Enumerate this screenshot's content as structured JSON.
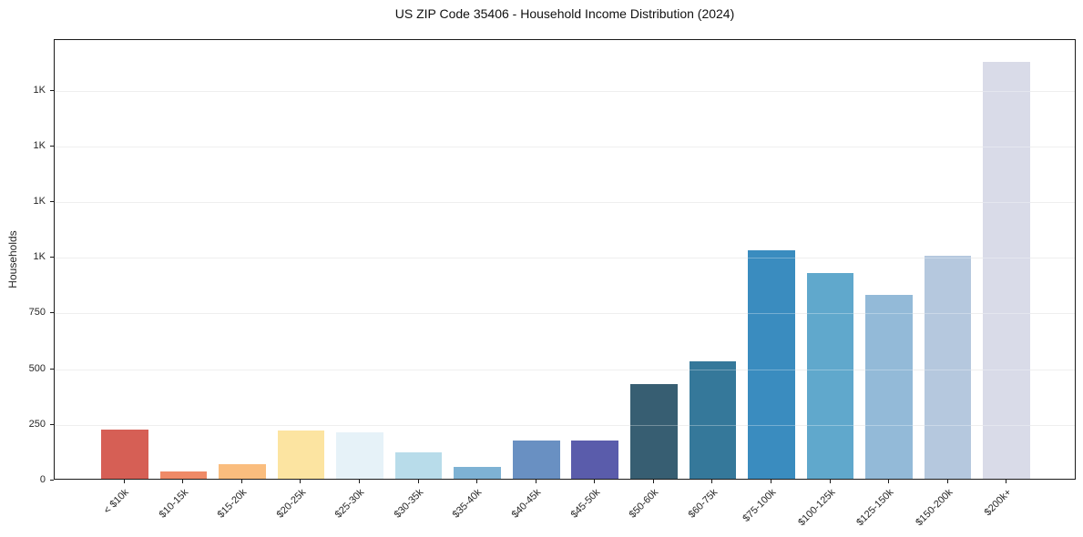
{
  "chart_data": {
    "type": "bar",
    "title": "US ZIP Code 35406 - Household Income Distribution (2024)",
    "xlabel": "",
    "ylabel": "Households",
    "categories": [
      "< $10k",
      "$10-15k",
      "$15-20k",
      "$20-25k",
      "$25-30k",
      "$30-35k",
      "$35-40k",
      "$40-45k",
      "$45-50k",
      "$50-60k",
      "$60-75k",
      "$75-100k",
      "$100-125k",
      "$125-150k",
      "$150-200k",
      "$200k+"
    ],
    "values": [
      220,
      32,
      65,
      215,
      210,
      120,
      55,
      170,
      170,
      425,
      525,
      1025,
      925,
      825,
      1000,
      1870
    ],
    "bar_colors": [
      "#d65f55",
      "#ef8a67",
      "#fabd7e",
      "#fce4a1",
      "#e6f2f8",
      "#b8dcea",
      "#7eb2d4",
      "#6990c2",
      "#5a5cab",
      "#375e72",
      "#35789a",
      "#3a8cbf",
      "#60a8cc",
      "#93bad8",
      "#b5c8de",
      "#d9dbe8"
    ],
    "ylim": [
      0,
      1977
    ],
    "yticks": [
      {
        "value": 0,
        "label": "0"
      },
      {
        "value": 250,
        "label": "250"
      },
      {
        "value": 500,
        "label": "500"
      },
      {
        "value": 750,
        "label": "750"
      },
      {
        "value": 1000,
        "label": "1K"
      },
      {
        "value": 1250,
        "label": "1K"
      },
      {
        "value": 1500,
        "label": "1K"
      },
      {
        "value": 1750,
        "label": "1K"
      }
    ],
    "grid": "horizontal",
    "legend": "none",
    "background_color": "#ffffff",
    "spine_color": "#1a1a1a",
    "gridline_color": "#e8e8e8"
  }
}
